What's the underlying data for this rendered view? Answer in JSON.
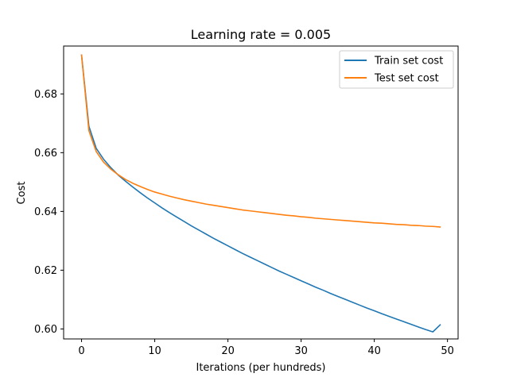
{
  "chart_data": {
    "type": "line",
    "title": "Learning rate = 0.005",
    "xlabel": "Iterations (per hundreds)",
    "ylabel": "Cost",
    "xlim": [
      -2.45,
      51.45
    ],
    "ylim": [
      0.5966,
      0.6963
    ],
    "xticks": [
      0,
      10,
      20,
      30,
      40,
      50
    ],
    "yticks": [
      0.6,
      0.62,
      0.64,
      0.66,
      0.68
    ],
    "ytick_labels": [
      "0.60",
      "0.62",
      "0.64",
      "0.66",
      "0.68"
    ],
    "grid": false,
    "legend_position": "top-right",
    "x": [
      0,
      1,
      2,
      3,
      4,
      5,
      6,
      7,
      8,
      9,
      10,
      11,
      12,
      13,
      14,
      15,
      16,
      17,
      18,
      19,
      20,
      21,
      22,
      23,
      24,
      25,
      26,
      27,
      28,
      29,
      30,
      31,
      32,
      33,
      34,
      35,
      36,
      37,
      38,
      39,
      40,
      41,
      42,
      43,
      44,
      45,
      46,
      47,
      48,
      49
    ],
    "series": [
      {
        "name": "Train set cost",
        "color": "#1f77b4",
        "values": [
          0.6932,
          0.669,
          0.6615,
          0.6578,
          0.6549,
          0.6524,
          0.6503,
          0.6483,
          0.6464,
          0.6446,
          0.6429,
          0.6412,
          0.6396,
          0.6381,
          0.6366,
          0.6351,
          0.6337,
          0.6323,
          0.6309,
          0.6296,
          0.6283,
          0.627,
          0.6257,
          0.6245,
          0.6233,
          0.6221,
          0.6209,
          0.6197,
          0.6186,
          0.6175,
          0.6164,
          0.6153,
          0.6142,
          0.6132,
          0.6121,
          0.6111,
          0.6101,
          0.6091,
          0.6081,
          0.6071,
          0.6062,
          0.6052,
          0.6043,
          0.6034,
          0.6025,
          0.6016,
          0.6007,
          0.5998,
          0.599,
          0.6014
        ]
      },
      {
        "name": "Test set cost",
        "color": "#ff7f0e",
        "values": [
          0.6932,
          0.6675,
          0.6604,
          0.6568,
          0.6544,
          0.6525,
          0.6509,
          0.6496,
          0.6485,
          0.6475,
          0.6466,
          0.6459,
          0.6452,
          0.6446,
          0.644,
          0.6435,
          0.643,
          0.6425,
          0.6421,
          0.6417,
          0.6413,
          0.6409,
          0.6405,
          0.6402,
          0.6399,
          0.6396,
          0.6393,
          0.639,
          0.6387,
          0.6385,
          0.6382,
          0.638,
          0.6377,
          0.6375,
          0.6373,
          0.6371,
          0.6369,
          0.6367,
          0.6365,
          0.6363,
          0.6361,
          0.636,
          0.6358,
          0.6356,
          0.6355,
          0.6353,
          0.6352,
          0.635,
          0.6349,
          0.6347
        ]
      }
    ]
  }
}
